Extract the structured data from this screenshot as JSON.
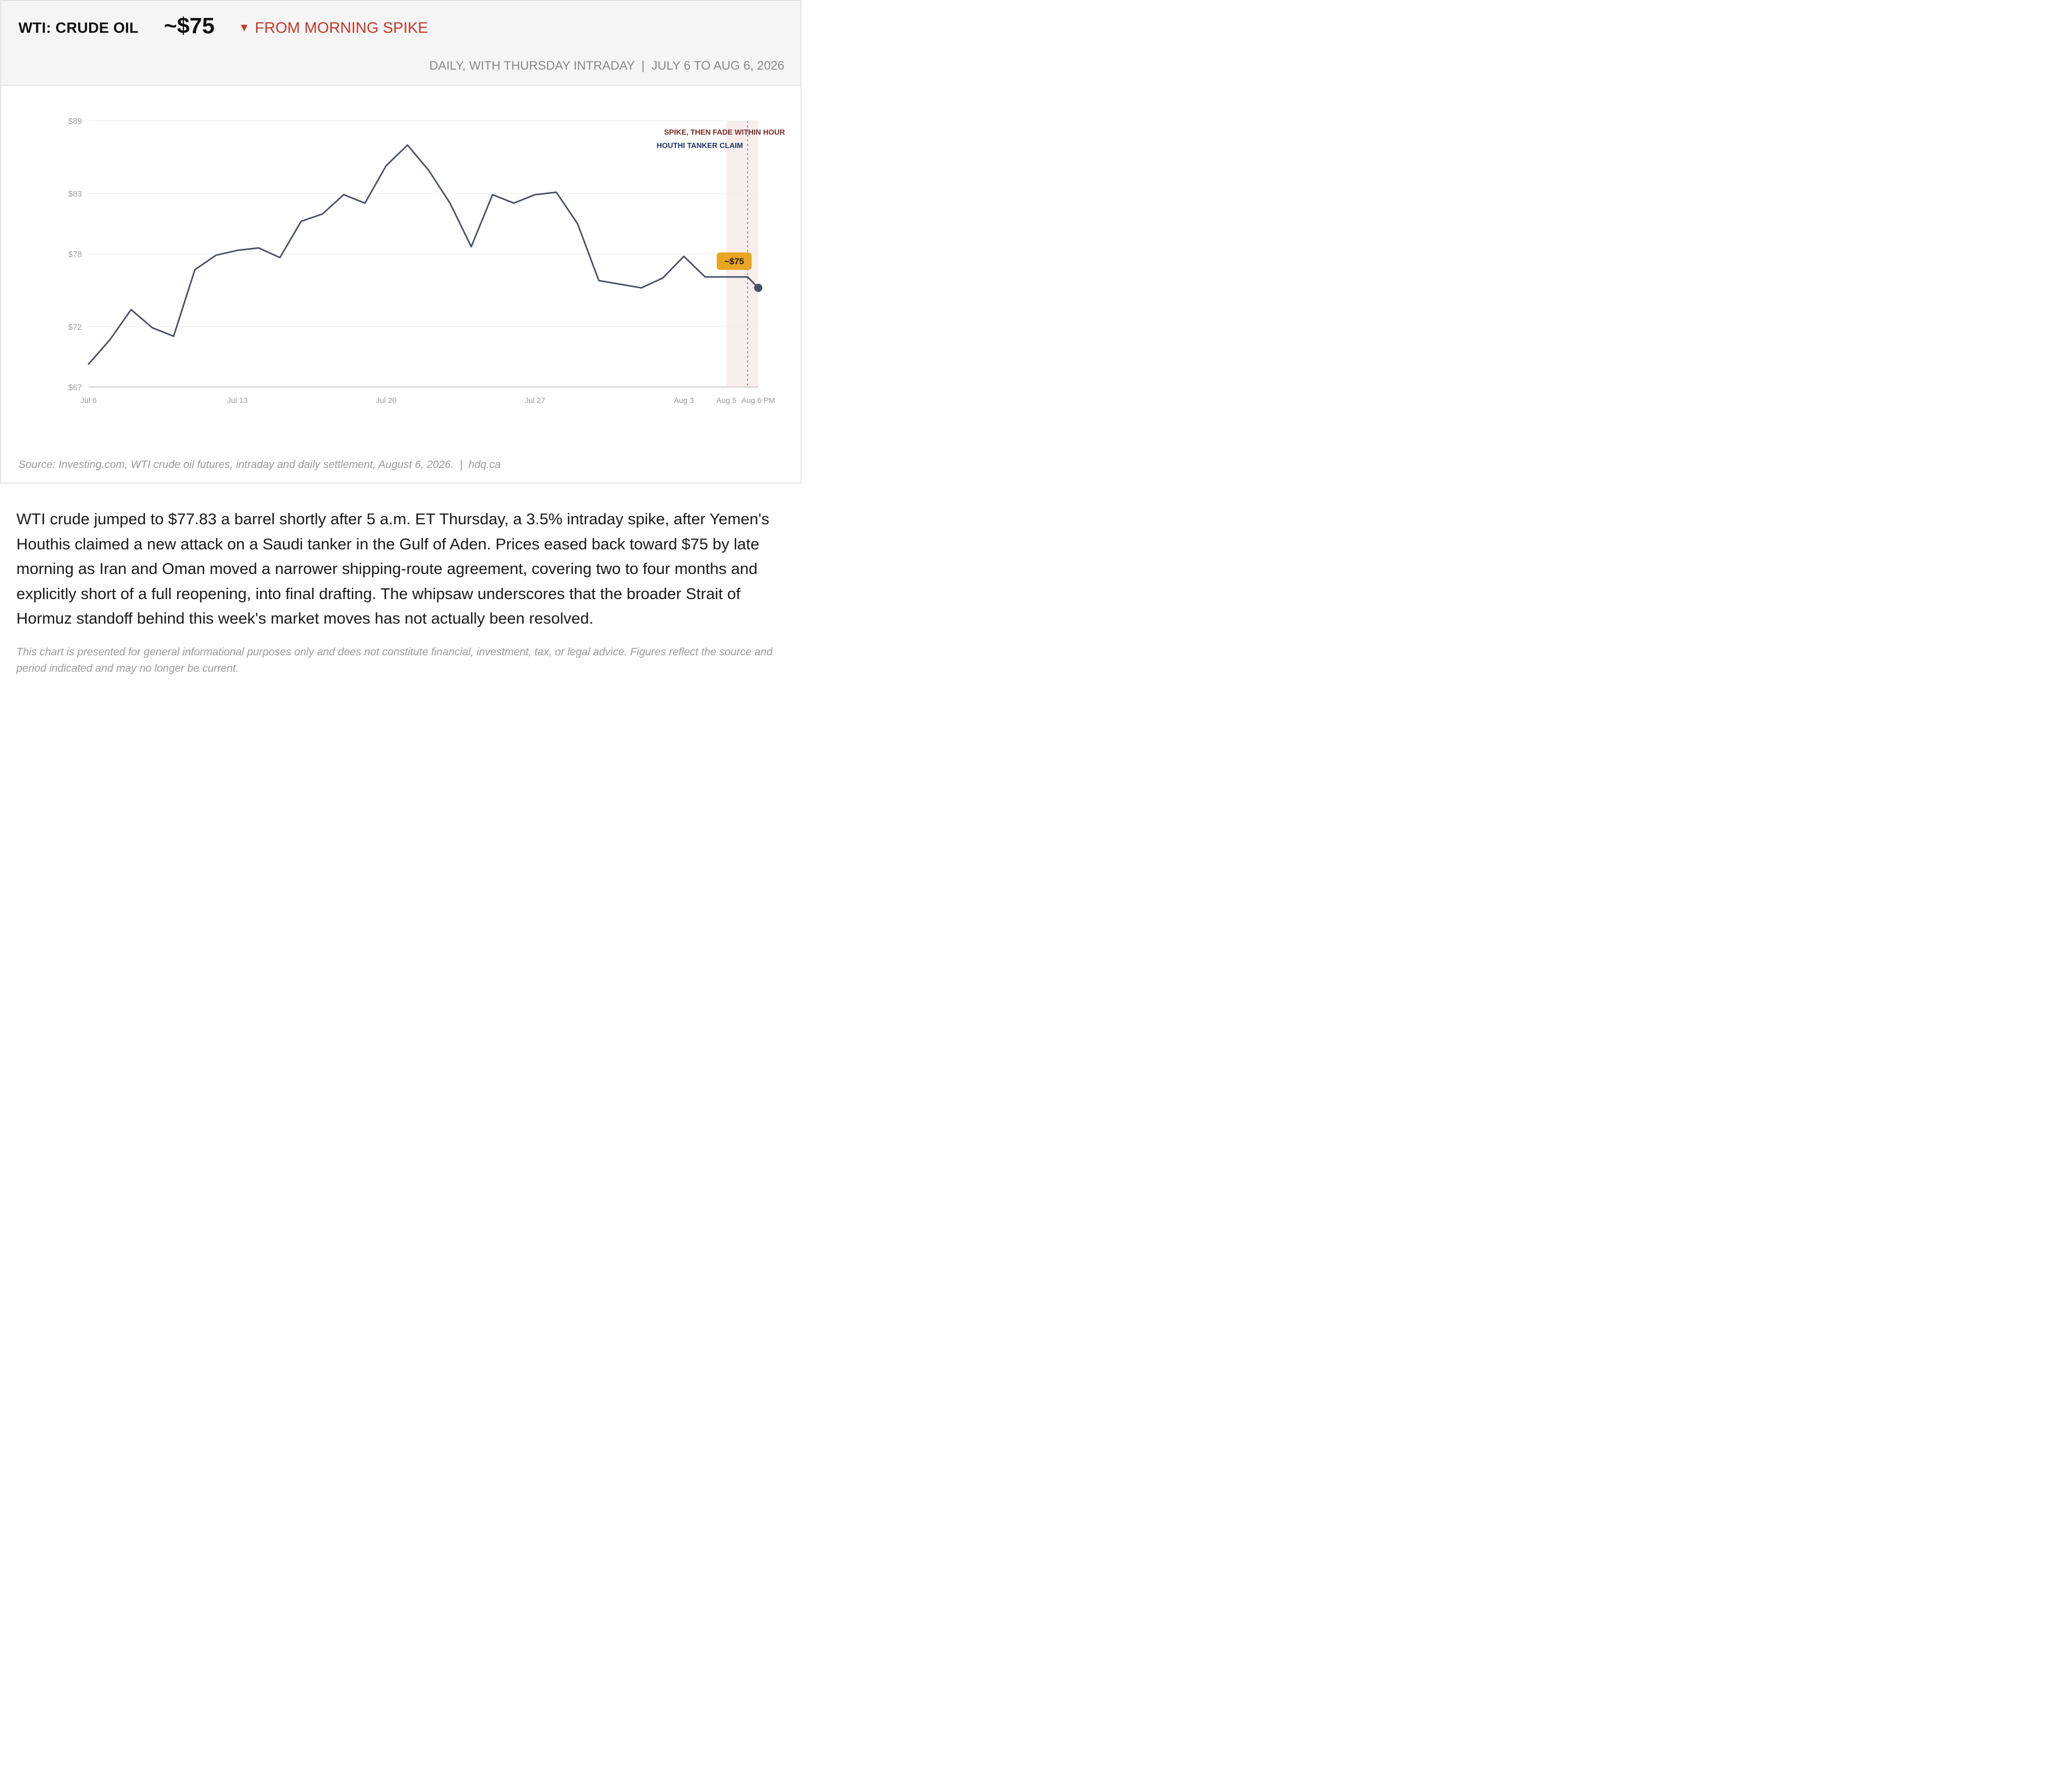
{
  "header": {
    "ticker": "WTI: CRUDE OIL",
    "price": "~$75",
    "change_arrow": "▼",
    "change": "FROM MORNING SPIKE",
    "subtitle": "DAILY, WITH THURSDAY INTRADAY  |  JULY 6 TO AUG 6, 2026",
    "change_color": "#c0392b"
  },
  "chart_data": {
    "type": "line",
    "ylim": [
      67,
      89
    ],
    "y_ticks": [
      89,
      83,
      78,
      72,
      67
    ],
    "y_tick_labels": [
      "$89",
      "$83",
      "$78",
      "$72",
      "$67"
    ],
    "x_tick_labels": [
      {
        "label": "Jul 6",
        "day": 6
      },
      {
        "label": "Jul 13",
        "day": 13
      },
      {
        "label": "Jul 20",
        "day": 20
      },
      {
        "label": "Jul 27",
        "day": 27
      },
      {
        "label": "Aug 3",
        "day": 34
      },
      {
        "label": "Aug 5",
        "day": 36
      },
      {
        "label": "Aug 6 PM",
        "day": 37.5
      }
    ],
    "grid": true,
    "line_color": "#4a5060",
    "series": [
      {
        "days": [
          6,
          7,
          8,
          9,
          10,
          11,
          12,
          13,
          14,
          15,
          16,
          17,
          18,
          19,
          20,
          21,
          22,
          23,
          24,
          25,
          26,
          27,
          28,
          29,
          30,
          31,
          32,
          33,
          34,
          35,
          36,
          36.5,
          37,
          37.5
        ],
        "values": [
          68.9,
          70.9,
          73.4,
          71.9,
          71.2,
          76.7,
          77.9,
          78.3,
          78.5,
          77.7,
          80.7,
          81.3,
          82.9,
          82.2,
          85.3,
          87.0,
          84.9,
          82.2,
          78.6,
          82.9,
          82.2,
          82.9,
          83.1,
          80.5,
          75.8,
          75.5,
          75.2,
          76.0,
          77.8,
          76.1,
          76.1,
          76.1,
          76.1,
          75.2
        ]
      }
    ],
    "highlight_band": {
      "from_day": 36,
      "to_day": 37.5,
      "color": "#f9eeee"
    },
    "event_line": {
      "day": 37
    },
    "annotations": {
      "spike": "SPIKE, THEN FADE WITHIN HOURS",
      "claim": "HOUTHI TANKER CLAIM",
      "callout": "~$75"
    },
    "callout_color": "#e8a623",
    "spike_color": "#7a2a2a",
    "claim_color": "#1f3561"
  },
  "source": "Source: Investing.com, WTI crude oil futures, intraday and daily settlement, August 6, 2026.  |  hdq.ca",
  "body": "WTI crude jumped to $77.83 a barrel shortly after 5 a.m. ET Thursday, a 3.5% intraday spike, after Yemen's Houthis claimed a new attack on a Saudi tanker in the Gulf of Aden. Prices eased back toward $75 by late morning as Iran and Oman moved a narrower shipping-route agreement, covering two to four months and explicitly short of a full reopening, into final drafting. The whipsaw underscores that the broader Strait of Hormuz standoff behind this week's market moves has not actually been resolved.",
  "disclaimer": "This chart is presented for general informational purposes only and does not constitute financial, investment, tax, or legal advice. Figures reflect the source and period indicated and may no longer be current."
}
